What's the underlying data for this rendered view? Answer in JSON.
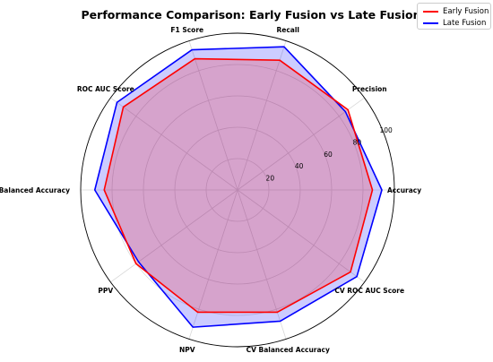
{
  "chart_data": {
    "type": "radar",
    "title": "Performance Comparison: Early Fusion vs Late Fusion",
    "categories": [
      "Accuracy",
      "Precision",
      "Recall",
      "F1 Score",
      "ROC AUC Score",
      "Balanced Accuracy",
      "PPV",
      "NPV",
      "CV Balanced Accuracy",
      "CV ROC AUC Score"
    ],
    "series": [
      {
        "name": "Early Fusion",
        "values": [
          86,
          87,
          87,
          88,
          90,
          85,
          80,
          82,
          82,
          89
        ],
        "color": "#ff0000",
        "fill": "#ff0000"
      },
      {
        "name": "Late Fusion",
        "values": [
          92,
          85,
          96,
          94,
          95,
          91,
          78,
          92,
          88,
          94
        ],
        "color": "#0000ff",
        "fill": "#0000ff"
      }
    ],
    "rlim": [
      0,
      100
    ],
    "rticks": [
      20,
      40,
      60,
      80,
      100
    ],
    "grid": true,
    "legend_placement": "top-right"
  }
}
